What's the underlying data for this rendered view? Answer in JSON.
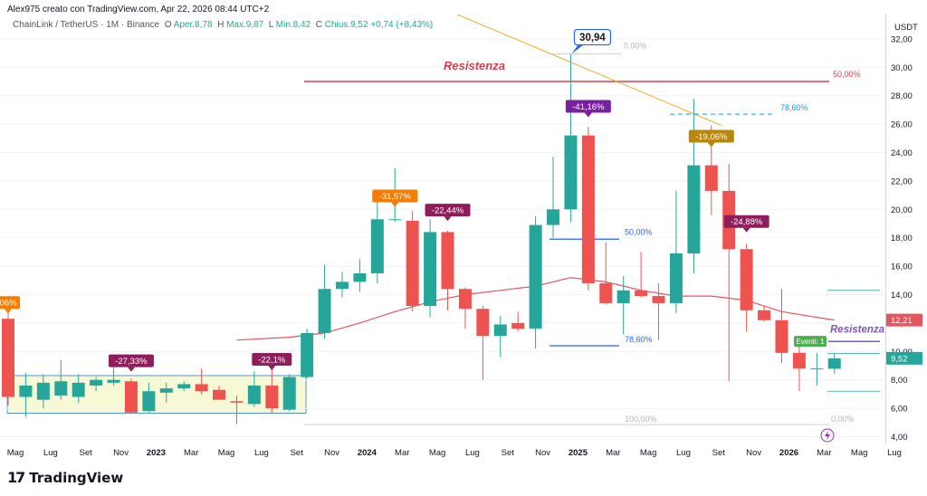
{
  "header": {
    "credit": "Alex975 creato con TradingView.com, Apr 22, 2026 08:44 UTC+2",
    "symbol": "ChainLink / TetherUS · 1M · Binance",
    "open_label": "O",
    "open": "Aper.8,78",
    "high_label": "H",
    "high": "Max.9,87",
    "low_label": "L",
    "low": "Min.8,42",
    "close_label": "C",
    "close": "Chius.9,52",
    "change": "+0,74 (+8,43%)"
  },
  "branding": {
    "logo_text": "TradingView",
    "logo_mark": "17"
  },
  "colors": {
    "up": "#26a69a",
    "down": "#ef5350",
    "ma": "#e5555f",
    "resist": "#e03b4b",
    "fib_blue": "#2962ff",
    "trend": "#f5a623"
  },
  "chart_data": {
    "type": "candlestick",
    "currency": "USDT",
    "ylim": [
      4,
      32
    ],
    "y_ticks": [
      "4,00",
      "6,00",
      "8,00",
      "10,00",
      "12,00",
      "14,00",
      "16,00",
      "18,00",
      "20,00",
      "22,00",
      "24,00",
      "26,00",
      "28,00",
      "30,00",
      "32,00"
    ],
    "x_labels": [
      "Mag",
      "Lug",
      "Set",
      "Nov",
      "2023",
      "Mar",
      "Mag",
      "Lug",
      "Set",
      "Nov",
      "2024",
      "Mar",
      "Mag",
      "Lug",
      "Set",
      "Nov",
      "2025",
      "Mar",
      "Mag",
      "Lug",
      "Set",
      "Nov",
      "2026",
      "Mar",
      "Mag",
      "Lug"
    ],
    "x_label_index": [
      0,
      2,
      4,
      6,
      8,
      10,
      12,
      14,
      16,
      18,
      20,
      22,
      24,
      26,
      28,
      30,
      32,
      34,
      36,
      38,
      40,
      42,
      44,
      46,
      48,
      50
    ],
    "candles": [
      {
        "o": 12.3,
        "h": 12.8,
        "l": 6.2,
        "c": 6.8
      },
      {
        "o": 6.8,
        "h": 8.5,
        "l": 5.4,
        "c": 7.6
      },
      {
        "o": 6.6,
        "h": 8.4,
        "l": 6.0,
        "c": 7.8
      },
      {
        "o": 6.9,
        "h": 9.4,
        "l": 6.6,
        "c": 7.9
      },
      {
        "o": 6.8,
        "h": 8.4,
        "l": 6.4,
        "c": 7.8
      },
      {
        "o": 7.6,
        "h": 8.2,
        "l": 7.2,
        "c": 8.0
      },
      {
        "o": 7.8,
        "h": 8.9,
        "l": 7.6,
        "c": 8.0
      },
      {
        "o": 7.9,
        "h": 8.1,
        "l": 5.6,
        "c": 5.7
      },
      {
        "o": 5.8,
        "h": 7.8,
        "l": 5.7,
        "c": 7.2
      },
      {
        "o": 7.1,
        "h": 7.8,
        "l": 6.4,
        "c": 7.4
      },
      {
        "o": 7.4,
        "h": 7.9,
        "l": 7.2,
        "c": 7.7
      },
      {
        "o": 7.7,
        "h": 8.8,
        "l": 7.0,
        "c": 7.2
      },
      {
        "o": 7.3,
        "h": 7.6,
        "l": 6.6,
        "c": 6.6
      },
      {
        "o": 6.5,
        "h": 6.9,
        "l": 4.9,
        "c": 6.4
      },
      {
        "o": 6.3,
        "h": 8.6,
        "l": 6.1,
        "c": 7.6
      },
      {
        "o": 7.6,
        "h": 8.8,
        "l": 5.7,
        "c": 6.0
      },
      {
        "o": 5.9,
        "h": 8.4,
        "l": 5.8,
        "c": 8.2
      },
      {
        "o": 8.2,
        "h": 11.6,
        "l": 8.1,
        "c": 11.3
      },
      {
        "o": 11.3,
        "h": 16.1,
        "l": 10.9,
        "c": 14.4
      },
      {
        "o": 14.4,
        "h": 15.6,
        "l": 13.8,
        "c": 14.9
      },
      {
        "o": 14.9,
        "h": 16.5,
        "l": 14.2,
        "c": 15.5
      },
      {
        "o": 15.5,
        "h": 20.8,
        "l": 14.8,
        "c": 19.3
      },
      {
        "o": 19.3,
        "h": 22.9,
        "l": 19.1,
        "c": 19.3
      },
      {
        "o": 19.2,
        "h": 19.9,
        "l": 12.8,
        "c": 13.2
      },
      {
        "o": 13.2,
        "h": 19.3,
        "l": 12.4,
        "c": 18.4
      },
      {
        "o": 18.4,
        "h": 18.5,
        "l": 12.9,
        "c": 14.4
      },
      {
        "o": 14.4,
        "h": 14.5,
        "l": 11.6,
        "c": 13.0
      },
      {
        "o": 13.0,
        "h": 13.2,
        "l": 8.0,
        "c": 11.1
      },
      {
        "o": 11.1,
        "h": 12.5,
        "l": 9.6,
        "c": 11.9
      },
      {
        "o": 12.0,
        "h": 12.8,
        "l": 11.4,
        "c": 11.6
      },
      {
        "o": 11.6,
        "h": 19.5,
        "l": 10.2,
        "c": 18.9
      },
      {
        "o": 18.9,
        "h": 23.7,
        "l": 18.0,
        "c": 20.0
      },
      {
        "o": 20.0,
        "h": 30.9,
        "l": 19.1,
        "c": 25.2
      },
      {
        "o": 25.2,
        "h": 25.8,
        "l": 14.3,
        "c": 14.8
      },
      {
        "o": 14.8,
        "h": 17.7,
        "l": 13.3,
        "c": 13.4
      },
      {
        "o": 13.4,
        "h": 15.3,
        "l": 11.2,
        "c": 14.3
      },
      {
        "o": 14.3,
        "h": 17.0,
        "l": 13.8,
        "c": 13.9
      },
      {
        "o": 13.9,
        "h": 14.8,
        "l": 10.8,
        "c": 13.4
      },
      {
        "o": 13.4,
        "h": 21.3,
        "l": 12.7,
        "c": 16.9
      },
      {
        "o": 16.9,
        "h": 27.8,
        "l": 15.5,
        "c": 23.1
      },
      {
        "o": 23.1,
        "h": 25.9,
        "l": 19.6,
        "c": 21.3
      },
      {
        "o": 21.3,
        "h": 23.2,
        "l": 7.9,
        "c": 17.2
      },
      {
        "o": 17.2,
        "h": 17.6,
        "l": 11.4,
        "c": 12.9
      },
      {
        "o": 12.9,
        "h": 13.2,
        "l": 12.1,
        "c": 12.2
      },
      {
        "o": 12.2,
        "h": 14.4,
        "l": 9.2,
        "c": 9.9
      },
      {
        "o": 9.9,
        "h": 10.5,
        "l": 7.2,
        "c": 8.8
      },
      {
        "o": 8.8,
        "h": 9.9,
        "l": 7.6,
        "c": 8.8
      },
      {
        "o": 8.78,
        "h": 9.87,
        "l": 8.42,
        "c": 9.52
      }
    ],
    "ma": [
      {
        "i": 13,
        "v": 10.8
      },
      {
        "i": 16,
        "v": 11.0
      },
      {
        "i": 18,
        "v": 11.3
      },
      {
        "i": 20,
        "v": 12.0
      },
      {
        "i": 22,
        "v": 12.8
      },
      {
        "i": 24,
        "v": 13.5
      },
      {
        "i": 26,
        "v": 14.0
      },
      {
        "i": 28,
        "v": 14.3
      },
      {
        "i": 30,
        "v": 14.6
      },
      {
        "i": 32,
        "v": 15.2
      },
      {
        "i": 34,
        "v": 14.9
      },
      {
        "i": 36,
        "v": 14.3
      },
      {
        "i": 38,
        "v": 13.9
      },
      {
        "i": 40,
        "v": 13.9
      },
      {
        "i": 42,
        "v": 13.6
      },
      {
        "i": 44,
        "v": 12.8
      },
      {
        "i": 46,
        "v": 12.4
      },
      {
        "i": 47,
        "v": 12.21
      }
    ],
    "percent_labels": [
      {
        "text": "-27,33%",
        "i": 7,
        "v": 8.9,
        "color": "#8e1e5b"
      },
      {
        "text": "-22,1%",
        "i": 15,
        "v": 9.0,
        "color": "#8e1e5b"
      },
      {
        "text": "-31,57%",
        "i": 22,
        "v": 20.5,
        "color": "#f57c00"
      },
      {
        "text": "-22,44%",
        "i": 25,
        "v": 19.5,
        "color": "#8e1e5b"
      },
      {
        "text": "-41,16%",
        "i": 33,
        "v": 26.8,
        "color": "#7b1fa2"
      },
      {
        "text": "-19,06%",
        "i": 40,
        "v": 24.7,
        "color": "#b8860b"
      },
      {
        "text": "-24,88%",
        "i": 42,
        "v": 18.7,
        "color": "#8e1e5b"
      },
      {
        "text": "06%",
        "i": 0,
        "v": 13.0,
        "color": "#f57c00"
      }
    ],
    "annotations": {
      "peak": "30,94",
      "resist_top": "Resistenza",
      "resist_right": "Resistenza",
      "fib_0_top": "0,00%",
      "fib_50_top": "50,00%",
      "fib_786_top": "78,60%",
      "fib_50_mid": "50,00%",
      "fib_786_mid": "78,60%",
      "fib_100": "100,00%",
      "fib_0_bottom": "0,00%",
      "event": "Eventi: 1",
      "price_ma": "12,21",
      "price_last": "9,52"
    }
  }
}
